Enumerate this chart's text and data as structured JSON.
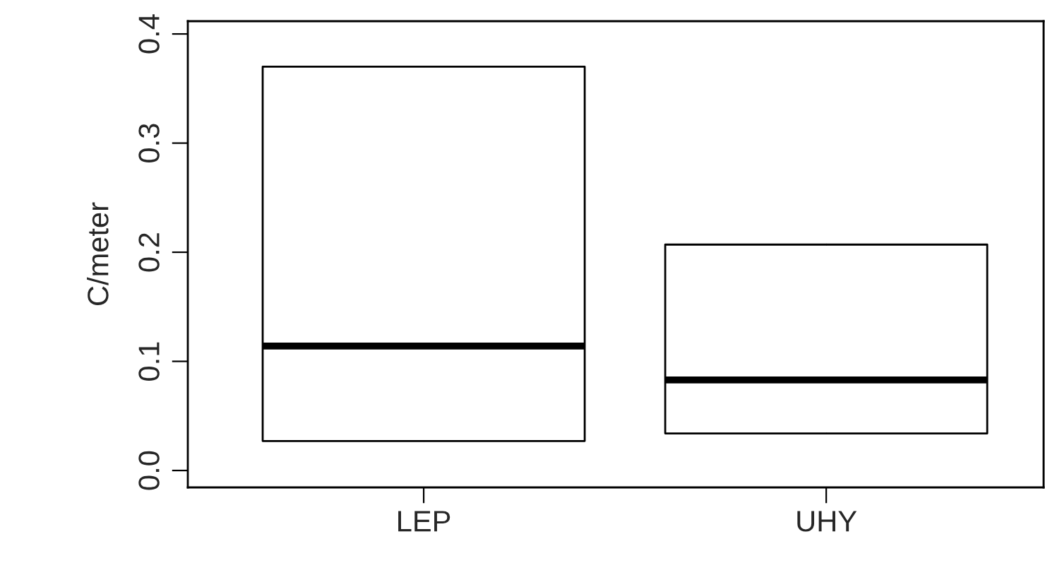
{
  "chart_data": {
    "type": "box",
    "ylabel": "C/meter",
    "categories": [
      "LEP",
      "UHY"
    ],
    "boxes": [
      {
        "low": 0.027,
        "q1": 0.027,
        "median": 0.114,
        "q3": 0.37,
        "high": 0.37
      },
      {
        "low": 0.034,
        "q1": 0.034,
        "median": 0.083,
        "q3": 0.207,
        "high": 0.207
      }
    ],
    "ylim": [
      -0.0155,
      0.4117
    ],
    "yticks": [
      {
        "value": 0,
        "label": "0.0"
      },
      0.1,
      0.2,
      0.3,
      0.4
    ],
    "grid": false
  }
}
